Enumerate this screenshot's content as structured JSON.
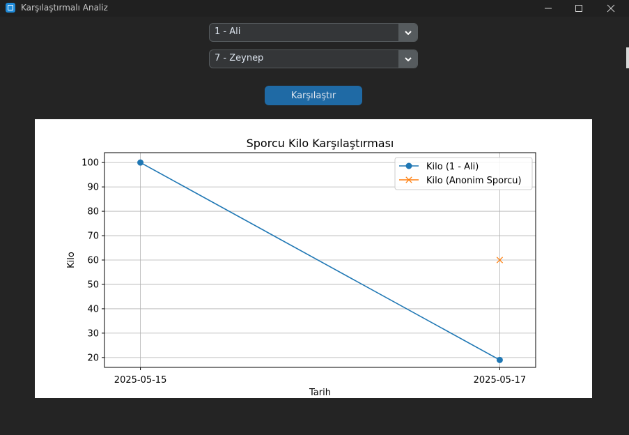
{
  "window": {
    "title": "Karşılaştırmalı Analiz"
  },
  "athlete1": {
    "selected": "1 - Ali"
  },
  "athlete2": {
    "selected": "7 - Zeynep"
  },
  "compare_button": {
    "label": "Karşılaştır"
  },
  "chart_data": {
    "type": "line",
    "title": "Sporcu Kilo Karşılaştırması",
    "xlabel": "Tarih",
    "ylabel": "Kilo",
    "x_ticks": [
      "2025-05-15",
      "2025-05-17"
    ],
    "y_ticks": [
      20,
      30,
      40,
      50,
      60,
      70,
      80,
      90,
      100
    ],
    "grid": true,
    "legend_position": "top-right",
    "series": [
      {
        "name": "Kilo (1 - Ali)",
        "color": "#1f77b4",
        "marker": "circle",
        "points": [
          {
            "x": "2025-05-15",
            "y": 100
          },
          {
            "x": "2025-05-17",
            "y": 19
          }
        ]
      },
      {
        "name": "Kilo (Anonim Sporcu)",
        "color": "#ff7f0e",
        "marker": "x",
        "points": [
          {
            "x": "2025-05-17",
            "y": 60
          }
        ]
      }
    ]
  }
}
